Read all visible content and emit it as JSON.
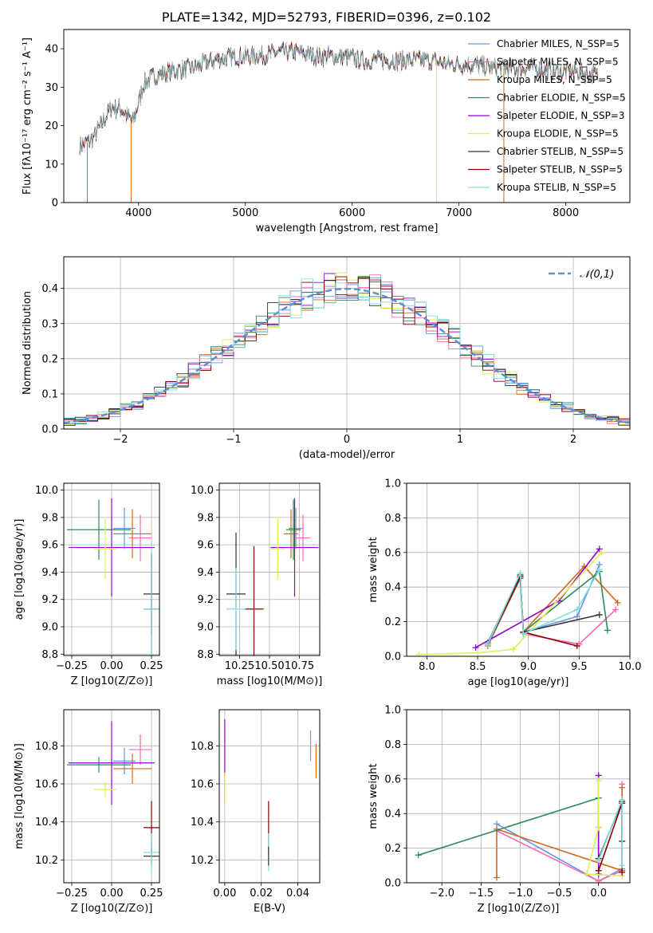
{
  "figure": {
    "title": "PLATE=1342, MJD=52793, FIBERID=0396, z=0.102"
  },
  "chart_data": [
    {
      "id": "spectrum",
      "type": "line",
      "xlabel": "wavelength [Angstrom, rest frame]",
      "ylabel": "Flux [fλ10⁻¹⁷ erg cm⁻² s⁻¹ A⁻¹]",
      "xlim": [
        3300,
        8600
      ],
      "ylim": [
        0,
        45
      ],
      "xticks": [
        4000,
        5000,
        6000,
        7000,
        8000
      ],
      "yticks": [
        0,
        10,
        20,
        30,
        40
      ],
      "grid": false,
      "legend_position": "top-right",
      "continuum": {
        "x": [
          3450,
          3550,
          3650,
          3750,
          3850,
          3950,
          4050,
          4150,
          4300,
          4500,
          4700,
          4900,
          5100,
          5300,
          5500,
          5700,
          5900,
          6100,
          6300,
          6500,
          6700,
          6900,
          7100,
          7300,
          7500,
          7700,
          7900,
          8100,
          8300
        ],
        "y": [
          15,
          16,
          20,
          25,
          24,
          21,
          31,
          33,
          34,
          35,
          37,
          38,
          38,
          39,
          39,
          38,
          38,
          37,
          37,
          37,
          37,
          36,
          36,
          35,
          35,
          35,
          34,
          34,
          33
        ]
      },
      "series": [
        {
          "name": "Chabrier MILES, N_SSP=5",
          "color": "#6495ed"
        },
        {
          "name": "Salpeter MILES, N_SSP=5",
          "color": "#ff69b4"
        },
        {
          "name": "Kroupa MILES, N_SSP=5",
          "color": "#d2691e"
        },
        {
          "name": "Chabrier ELODIE, N_SSP=5",
          "color": "#2e8b57"
        },
        {
          "name": "Salpeter ELODIE, N_SSP=3",
          "color": "#9400d3"
        },
        {
          "name": "Kroupa ELODIE, N_SSP=5",
          "color": "#dcf05a"
        },
        {
          "name": "Chabrier STELIB, N_SSP=5",
          "color": "#333333"
        },
        {
          "name": "Salpeter STELIB, N_SSP=5",
          "color": "#8b0000"
        },
        {
          "name": "Kroupa STELIB, N_SSP=5",
          "color": "#7fdde0"
        }
      ],
      "data_color": "#808080"
    },
    {
      "id": "residuals",
      "type": "histogram",
      "xlabel": "(data-model)/error",
      "ylabel": "Normed distribution",
      "xlim": [
        -2.5,
        2.5
      ],
      "ylim": [
        0,
        0.49
      ],
      "xticks": [
        -2,
        -1,
        0,
        1,
        2
      ],
      "yticks": [
        0.0,
        0.1,
        0.2,
        0.3,
        0.4
      ],
      "grid": true,
      "bin_width": 0.1,
      "bin_start": -2.5,
      "legend": "𝒩(0,1)",
      "legend_position": "top-right",
      "gaussian": {
        "mu": 0,
        "sigma": 1,
        "color": "#5b8fd9"
      }
    },
    {
      "id": "age-vs-Z",
      "type": "errorbar",
      "xlabel": "Z [log10(Z/Z⊙)]",
      "ylabel": "age  [log10(age/yr)]",
      "xlim": [
        -0.3,
        0.3
      ],
      "ylim": [
        8.79,
        10.05
      ],
      "xticks": [
        -0.25,
        0.0,
        0.25
      ],
      "yticks": [
        8.8,
        9.0,
        9.2,
        9.4,
        9.6,
        9.8,
        10.0
      ],
      "grid": true,
      "points": [
        {
          "series": 0,
          "x": 0.08,
          "y": 9.72,
          "xerr": 0.07,
          "yerr": 0.15
        },
        {
          "series": 1,
          "x": 0.18,
          "y": 9.65,
          "xerr": 0.07,
          "yerr": 0.17
        },
        {
          "series": 2,
          "x": 0.13,
          "y": 9.68,
          "xerr": 0.12,
          "yerr": 0.18
        },
        {
          "series": 3,
          "x": -0.08,
          "y": 9.71,
          "xerr": 0.2,
          "yerr": 0.22
        },
        {
          "series": 4,
          "x": 0.0,
          "y": 9.58,
          "xerr": 0.27,
          "yerr": 0.36
        },
        {
          "series": 5,
          "x": -0.04,
          "y": 9.57,
          "xerr": 0.07,
          "yerr": 0.22
        },
        {
          "series": 6,
          "x": 0.25,
          "y": 9.24,
          "xerr": 0.05,
          "yerr": 0.3
        },
        {
          "series": 7,
          "x": 0.25,
          "y": 9.13,
          "xerr": 0.05,
          "yerr": 0.4
        },
        {
          "series": 8,
          "x": 0.25,
          "y": 9.13,
          "xerr": 0.05,
          "yerr": 0.45
        }
      ]
    },
    {
      "id": "age-vs-mass",
      "type": "errorbar",
      "xlabel": "mass [log10(M/M⊙)]",
      "ylabel": "",
      "xlim": [
        10.08,
        10.92
      ],
      "ylim": [
        8.79,
        10.05
      ],
      "xticks": [
        10.25,
        10.5,
        10.75
      ],
      "yticks": [
        8.8,
        9.0,
        9.2,
        9.4,
        9.6,
        9.8,
        10.0
      ],
      "grid": true,
      "points": [
        {
          "series": 0,
          "x": 10.72,
          "y": 9.72,
          "xerr": 0.06,
          "yerr": 0.15
        },
        {
          "series": 1,
          "x": 10.78,
          "y": 9.65,
          "xerr": 0.06,
          "yerr": 0.17
        },
        {
          "series": 2,
          "x": 10.68,
          "y": 9.68,
          "xerr": 0.06,
          "yerr": 0.18
        },
        {
          "series": 3,
          "x": 10.7,
          "y": 9.71,
          "xerr": 0.06,
          "yerr": 0.22
        },
        {
          "series": 4,
          "x": 10.71,
          "y": 9.58,
          "xerr": 0.2,
          "yerr": 0.36
        },
        {
          "series": 5,
          "x": 10.57,
          "y": 9.57,
          "xerr": 0.06,
          "yerr": 0.22
        },
        {
          "series": 6,
          "x": 10.22,
          "y": 9.24,
          "xerr": 0.08,
          "yerr": 0.45
        },
        {
          "series": 7,
          "x": 10.37,
          "y": 9.13,
          "xerr": 0.08,
          "yerr": 0.46
        },
        {
          "series": 8,
          "x": 10.22,
          "y": 9.13,
          "xerr": 0.08,
          "yerr": 0.3
        }
      ]
    },
    {
      "id": "massweight-vs-age",
      "type": "line",
      "xlabel": "age  [log10(age/yr)]",
      "ylabel": "mass weight",
      "xlim": [
        7.8,
        10.0
      ],
      "ylim": [
        0.0,
        1.0
      ],
      "xticks": [
        8.0,
        8.5,
        9.0,
        9.5,
        10.0
      ],
      "yticks": [
        0.0,
        0.2,
        0.4,
        0.6,
        0.8,
        1.0
      ],
      "grid": true,
      "series": [
        {
          "series": 0,
          "x": [
            8.6,
            8.92,
            8.95,
            9.48,
            9.7
          ],
          "y": [
            0.08,
            0.47,
            0.14,
            0.23,
            0.53
          ]
        },
        {
          "series": 1,
          "x": [
            8.6,
            8.92,
            8.95,
            9.5,
            9.86
          ],
          "y": [
            0.07,
            0.46,
            0.13,
            0.07,
            0.27
          ]
        },
        {
          "series": 2,
          "x": [
            8.6,
            8.92,
            8.95,
            9.55,
            9.88
          ],
          "y": [
            0.06,
            0.45,
            0.14,
            0.52,
            0.31
          ]
        },
        {
          "series": 3,
          "x": [
            8.6,
            8.92,
            8.95,
            9.7,
            9.78
          ],
          "y": [
            0.07,
            0.45,
            0.14,
            0.49,
            0.15
          ]
        },
        {
          "series": 4,
          "x": [
            8.48,
            9.3,
            9.7
          ],
          "y": [
            0.05,
            0.32,
            0.62
          ]
        },
        {
          "series": 5,
          "x": [
            7.92,
            8.5,
            8.85,
            9.72
          ],
          "y": [
            0.01,
            0.02,
            0.04,
            0.6
          ]
        },
        {
          "series": 6,
          "x": [
            8.6,
            8.92,
            8.95,
            9.7
          ],
          "y": [
            0.07,
            0.47,
            0.14,
            0.24
          ]
        },
        {
          "series": 7,
          "x": [
            8.6,
            8.92,
            8.95,
            9.48
          ],
          "y": [
            0.07,
            0.46,
            0.14,
            0.06
          ]
        },
        {
          "series": 8,
          "x": [
            8.6,
            8.92,
            8.95,
            9.48,
            9.7
          ],
          "y": [
            0.07,
            0.48,
            0.13,
            0.27,
            0.5
          ]
        }
      ]
    },
    {
      "id": "mass-vs-Z",
      "type": "errorbar",
      "xlabel": "Z [log10(Z/Z⊙)]",
      "ylabel": "mass [log10(M/M⊙)]",
      "xlim": [
        -0.3,
        0.3
      ],
      "ylim": [
        10.08,
        10.99
      ],
      "xticks": [
        -0.25,
        0.0,
        0.25
      ],
      "yticks": [
        10.2,
        10.4,
        10.6,
        10.8
      ],
      "grid": true,
      "points": [
        {
          "series": 0,
          "x": 0.08,
          "y": 10.72,
          "xerr": 0.07,
          "yerr": 0.07
        },
        {
          "series": 1,
          "x": 0.18,
          "y": 10.78,
          "xerr": 0.07,
          "yerr": 0.08
        },
        {
          "series": 2,
          "x": 0.13,
          "y": 10.68,
          "xerr": 0.12,
          "yerr": 0.08
        },
        {
          "series": 3,
          "x": -0.08,
          "y": 10.7,
          "xerr": 0.2,
          "yerr": 0.04
        },
        {
          "series": 4,
          "x": 0.0,
          "y": 10.71,
          "xerr": 0.27,
          "yerr": 0.22
        },
        {
          "series": 5,
          "x": -0.04,
          "y": 10.57,
          "xerr": 0.07,
          "yerr": 0.04
        },
        {
          "series": 6,
          "x": 0.25,
          "y": 10.22,
          "xerr": 0.05,
          "yerr": 0.05
        },
        {
          "series": 7,
          "x": 0.25,
          "y": 10.37,
          "xerr": 0.05,
          "yerr": 0.14
        },
        {
          "series": 8,
          "x": 0.25,
          "y": 10.24,
          "xerr": 0.05,
          "yerr": 0.1
        }
      ]
    },
    {
      "id": "mass-vs-EBV",
      "type": "errorbar",
      "xlabel": "E(B-V)",
      "ylabel": "",
      "xlim": [
        -0.003,
        0.052
      ],
      "ylim": [
        10.08,
        10.99
      ],
      "xticks": [
        0.0,
        0.02,
        0.04
      ],
      "yticks": [
        10.2,
        10.4,
        10.6,
        10.8
      ],
      "grid": true,
      "points": [
        {
          "series": 4,
          "x": 0.0,
          "y": 10.72,
          "xerr": 0,
          "yerr": 0.22
        },
        {
          "series": 5,
          "x": 0.0,
          "y": 10.58,
          "xerr": 0,
          "yerr": 0.08
        },
        {
          "series": 7,
          "x": 0.024,
          "y": 10.37,
          "xerr": 0,
          "yerr": 0.14
        },
        {
          "series": 8,
          "x": 0.024,
          "y": 10.24,
          "xerr": 0,
          "yerr": 0.1
        },
        {
          "series": 6,
          "x": 0.024,
          "y": 10.22,
          "xerr": 0,
          "yerr": 0.05
        },
        {
          "series": 1,
          "x": 0.047,
          "y": 10.8,
          "xerr": 0,
          "yerr": 0.08
        },
        {
          "series": 2,
          "x": 0.05,
          "y": 10.72,
          "xerr": 0,
          "yerr": 0.09
        }
      ]
    },
    {
      "id": "massweight-vs-Z",
      "type": "line",
      "xlabel": "Z [log10(Z/Z⊙)]",
      "ylabel": "mass weight",
      "xlim": [
        -2.45,
        0.4
      ],
      "ylim": [
        0.0,
        1.0
      ],
      "xticks": [
        -2.0,
        -1.5,
        -1.0,
        -0.5,
        0.0
      ],
      "yticks": [
        0.0,
        0.2,
        0.4,
        0.6,
        0.8,
        1.0
      ],
      "grid": true,
      "series": [
        {
          "series": 0,
          "x": [
            -1.3,
            0.0,
            0.3,
            0.3
          ],
          "y": [
            0.34,
            0.01,
            0.08,
            0.47
          ]
        },
        {
          "series": 1,
          "x": [
            -1.3,
            0.0,
            0.3,
            0.3
          ],
          "y": [
            0.3,
            0.01,
            0.07,
            0.57
          ]
        },
        {
          "series": 2,
          "x": [
            -1.3,
            -1.3,
            0.3,
            0.3
          ],
          "y": [
            0.03,
            0.31,
            0.07,
            0.55
          ]
        },
        {
          "series": 3,
          "x": [
            -2.3,
            0.0,
            0.0
          ],
          "y": [
            0.16,
            0.49,
            0.13
          ]
        },
        {
          "series": 4,
          "x": [
            0.0,
            0.0,
            0.0
          ],
          "y": [
            0.62,
            0.05,
            0.32
          ]
        },
        {
          "series": 5,
          "x": [
            0.0,
            0.0,
            -0.15,
            0.3
          ],
          "y": [
            0.59,
            0.32,
            0.05,
            0.04
          ]
        },
        {
          "series": 6,
          "x": [
            0.0,
            0.3,
            0.3
          ],
          "y": [
            0.14,
            0.47,
            0.24
          ]
        },
        {
          "series": 7,
          "x": [
            0.0,
            0.3,
            0.3
          ],
          "y": [
            0.07,
            0.46,
            0.06
          ]
        },
        {
          "series": 8,
          "x": [
            0.0,
            0.3,
            0.3
          ],
          "y": [
            0.13,
            0.48,
            0.1
          ]
        }
      ]
    }
  ]
}
